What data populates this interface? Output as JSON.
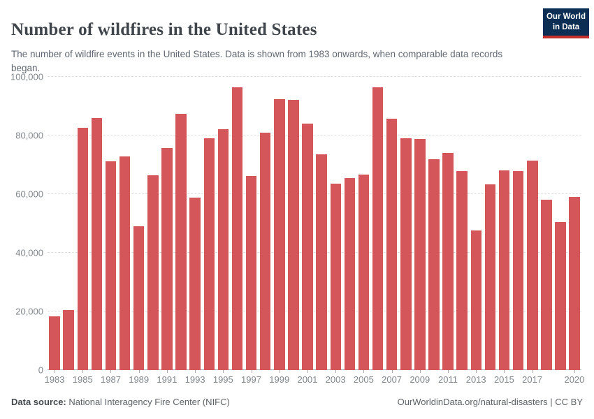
{
  "header": {
    "title": "Number of wildfires in the United States",
    "subtitle": "The number of wildfire events in the United States. Data is shown from 1983 onwards, when comparable data records began.",
    "logo": {
      "line1": "Our World",
      "line2": "in Data",
      "bg_color": "#0d2e54",
      "accent_color": "#c4302b"
    }
  },
  "chart_data": {
    "type": "bar",
    "title": "Number of wildfires in the United States",
    "xlabel": "",
    "ylabel": "",
    "ylim": [
      0,
      100000
    ],
    "grid": "horizontal-dashed",
    "bar_color": "#d4555a",
    "x": [
      1983,
      1984,
      1985,
      1986,
      1987,
      1988,
      1989,
      1990,
      1991,
      1992,
      1993,
      1994,
      1995,
      1996,
      1997,
      1998,
      1999,
      2000,
      2001,
      2002,
      2003,
      2004,
      2005,
      2006,
      2007,
      2008,
      2009,
      2010,
      2011,
      2012,
      2013,
      2014,
      2015,
      2016,
      2017,
      2018,
      2019,
      2020
    ],
    "values": [
      18229,
      20493,
      82591,
      85907,
      71300,
      72750,
      48949,
      66481,
      75754,
      87394,
      58810,
      79107,
      82234,
      96363,
      66196,
      81043,
      92487,
      92250,
      84079,
      73457,
      63629,
      65461,
      66753,
      96385,
      85705,
      78979,
      78792,
      71971,
      74126,
      67774,
      47579,
      63312,
      68151,
      67743,
      71499,
      58083,
      50477,
      58950
    ],
    "yticks": [
      {
        "value": 0,
        "label": "0"
      },
      {
        "value": 20000,
        "label": "20,000"
      },
      {
        "value": 40000,
        "label": "40,000"
      },
      {
        "value": 60000,
        "label": "60,000"
      },
      {
        "value": 80000,
        "label": "80,000"
      },
      {
        "value": 100000,
        "label": "100,000"
      }
    ],
    "xticks": [
      1983,
      1985,
      1987,
      1989,
      1991,
      1993,
      1995,
      1997,
      1999,
      2001,
      2003,
      2005,
      2007,
      2009,
      2011,
      2013,
      2015,
      2017,
      2020
    ]
  },
  "footer": {
    "datasource_label": "Data source:",
    "datasource_value": " National Interagency Fire Center (NIFC)",
    "link_text": "OurWorldinData.org/natural-disasters | CC BY"
  }
}
